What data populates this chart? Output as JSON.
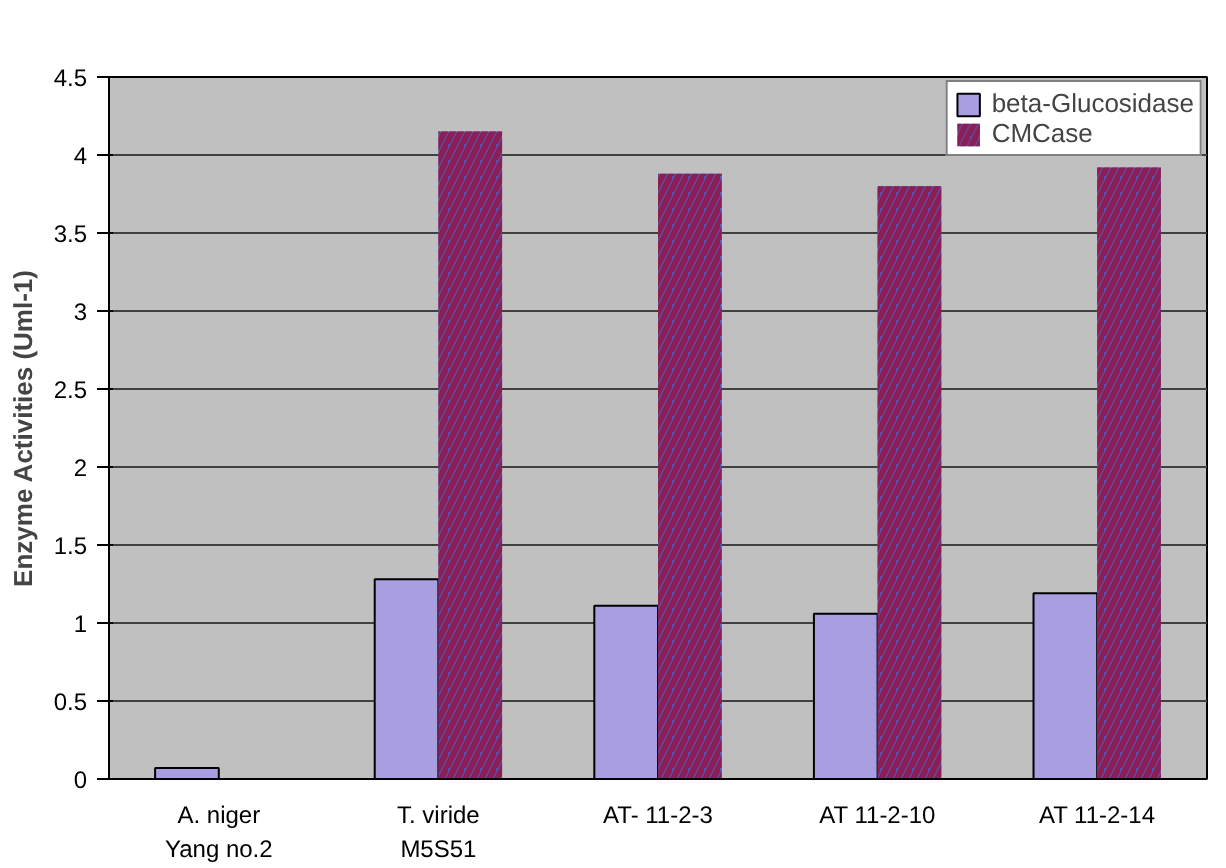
{
  "chart_data": {
    "type": "bar",
    "ylabel": "Enzyme Activities (Uml-1)",
    "categories": [
      "A. niger\nYang no.2",
      "T. viride\nM5S51",
      "AT- 11-2-3",
      "AT 11-2-10",
      "AT 11-2-14"
    ],
    "series": [
      {
        "name": "beta-Glucosidase",
        "color": "#a89ee0",
        "values": [
          0.07,
          1.28,
          1.11,
          1.06,
          1.19
        ]
      },
      {
        "name": "CMCase",
        "color": "#5a4fa8",
        "values": [
          0,
          4.15,
          3.88,
          3.8,
          3.92
        ]
      }
    ],
    "ylim": [
      0,
      4.5
    ],
    "yticks": [
      0,
      0.5,
      1,
      1.5,
      2,
      2.5,
      3,
      3.5,
      4,
      4.5
    ],
    "grid": "y",
    "legend": "top right"
  }
}
